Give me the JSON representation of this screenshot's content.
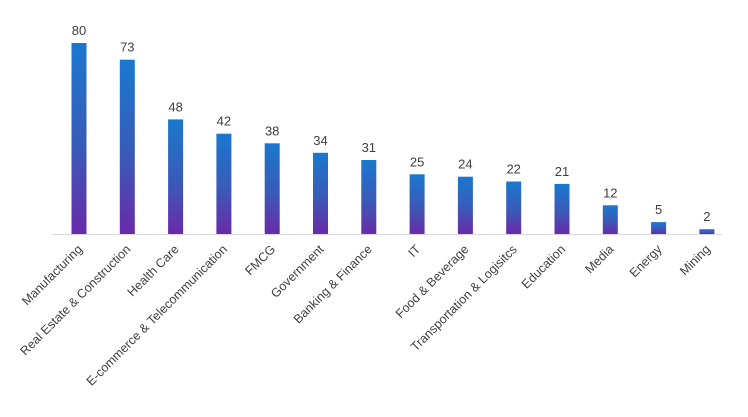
{
  "chart_data": {
    "type": "bar",
    "title": "",
    "xlabel": "",
    "ylabel": "",
    "categories": [
      "Manufacturing",
      "Real Estate & Construction",
      "Health Care",
      "E-commerce & Telecommunication",
      "FMCG",
      "Government",
      "Banking & Finance",
      "IT",
      "Food & Beverage",
      "Transportation & Logisitcs",
      "Education",
      "Media",
      "Energy",
      "Mining"
    ],
    "values": [
      80,
      73,
      48,
      42,
      38,
      34,
      31,
      25,
      24,
      22,
      21,
      12,
      5,
      2
    ],
    "ylim": [
      0,
      80
    ],
    "grid": false,
    "legend": "none",
    "colors": {
      "bar_top": "#1a78cf",
      "bar_bottom": "#6a2aa8",
      "axis": "#d9d9d9",
      "text": "#404040"
    }
  }
}
